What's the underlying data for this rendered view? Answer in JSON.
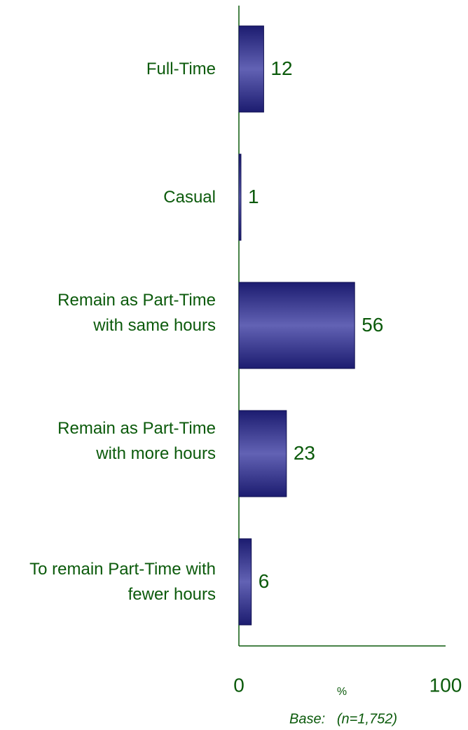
{
  "chart_data": {
    "type": "barh",
    "categories": [
      "Full-Time",
      "Casual",
      "Remain as Part-Time with same hours",
      "Remain as Part-Time with more hours",
      "To remain Part-Time with fewer hours"
    ],
    "values": [
      12,
      1,
      56,
      23,
      6
    ],
    "color": "#2a2a88",
    "xlim": [
      0,
      100
    ],
    "xticks": [
      0,
      100
    ],
    "xlabel": "%",
    "note": "Base:   (n=1,752)",
    "grid": false
  }
}
